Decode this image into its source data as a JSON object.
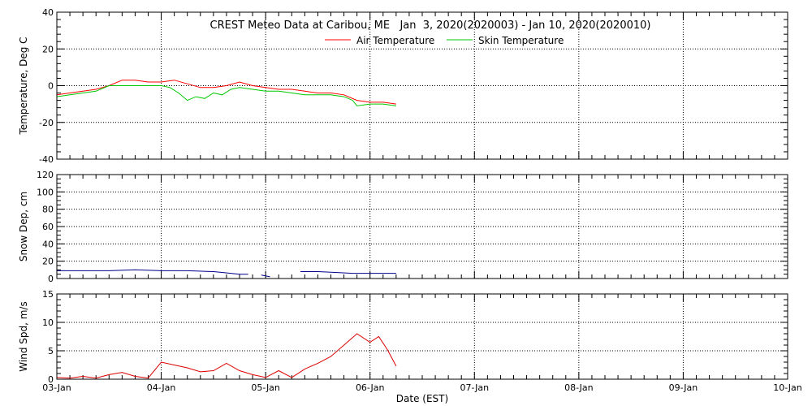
{
  "chart_data": [
    {
      "type": "line",
      "title": "CREST Meteo Data at Caribou, ME   Jan  3, 2020(2020003) - Jan 10, 2020(2020010)",
      "xlabel": "",
      "ylabel": "Temperature, Deg C",
      "xlim": [
        "2020-01-03",
        "2020-01-10"
      ],
      "ylim": [
        -40,
        40
      ],
      "yticks": [
        -40,
        -20,
        0,
        20,
        40
      ],
      "grid": true,
      "legend_position": "top-center",
      "series": [
        {
          "name": "Air Temperature",
          "color": "#ff0000",
          "x": [
            "2020-01-03 00:00",
            "2020-01-03 03:00",
            "2020-01-03 06:00",
            "2020-01-03 09:00",
            "2020-01-03 12:00",
            "2020-01-03 15:00",
            "2020-01-03 18:00",
            "2020-01-03 21:00",
            "2020-01-04 00:00",
            "2020-01-04 03:00",
            "2020-01-04 06:00",
            "2020-01-04 09:00",
            "2020-01-04 12:00",
            "2020-01-04 15:00",
            "2020-01-04 18:00",
            "2020-01-04 21:00",
            "2020-01-05 00:00",
            "2020-01-05 03:00",
            "2020-01-05 06:00",
            "2020-01-05 09:00",
            "2020-01-05 12:00",
            "2020-01-05 15:00",
            "2020-01-05 18:00",
            "2020-01-05 21:00",
            "2020-01-06 00:00",
            "2020-01-06 03:00",
            "2020-01-06 06:00"
          ],
          "y": [
            -5,
            -4,
            -3,
            -2,
            0,
            3,
            3,
            2,
            2,
            3,
            1,
            -1,
            -1,
            0,
            2,
            0,
            -1,
            -2,
            -2,
            -3,
            -4,
            -4,
            -5,
            -8,
            -9,
            -9,
            -10
          ]
        },
        {
          "name": "Skin Temperature",
          "color": "#00c800",
          "x": [
            "2020-01-03 00:00",
            "2020-01-03 03:00",
            "2020-01-03 06:00",
            "2020-01-03 09:00",
            "2020-01-03 12:00",
            "2020-01-03 15:00",
            "2020-01-03 18:00",
            "2020-01-03 21:00",
            "2020-01-04 00:00",
            "2020-01-04 02:00",
            "2020-01-04 04:00",
            "2020-01-04 06:00",
            "2020-01-04 08:00",
            "2020-01-04 10:00",
            "2020-01-04 12:00",
            "2020-01-04 14:00",
            "2020-01-04 16:00",
            "2020-01-04 18:00",
            "2020-01-04 21:00",
            "2020-01-05 00:00",
            "2020-01-05 03:00",
            "2020-01-05 06:00",
            "2020-01-05 09:00",
            "2020-01-05 12:00",
            "2020-01-05 15:00",
            "2020-01-05 18:00",
            "2020-01-05 20:00",
            "2020-01-05 21:00",
            "2020-01-06 00:00",
            "2020-01-06 03:00",
            "2020-01-06 06:00"
          ],
          "y": [
            -6,
            -5,
            -4,
            -3,
            0,
            0,
            0,
            0,
            0,
            -1,
            -4,
            -8,
            -6,
            -7,
            -4,
            -5,
            -2,
            -1,
            -2,
            -3,
            -3,
            -4,
            -5,
            -5,
            -5,
            -6,
            -8,
            -11,
            -10,
            -10,
            -11
          ]
        }
      ]
    },
    {
      "type": "line",
      "title": "",
      "xlabel": "",
      "ylabel": "Snow Dep, cm",
      "xlim": [
        "2020-01-03",
        "2020-01-10"
      ],
      "ylim": [
        0,
        120
      ],
      "yticks": [
        0,
        20,
        40,
        60,
        80,
        100,
        120
      ],
      "grid": true,
      "series": [
        {
          "name": "",
          "color": "#00008b",
          "x": [
            "2020-01-03 00:00",
            "2020-01-03 06:00",
            "2020-01-03 12:00",
            "2020-01-03 18:00",
            "2020-01-04 00:00",
            "2020-01-04 06:00",
            "2020-01-04 12:00",
            "2020-01-04 14:00",
            "2020-01-04 16:00",
            "2020-01-04 18:00",
            "2020-01-04 20:00",
            "null",
            "2020-01-04 23:00",
            "2020-01-05 00:00",
            "2020-01-05 01:00",
            "null",
            "2020-01-05 08:00",
            "2020-01-05 12:00",
            "2020-01-05 16:00",
            "2020-01-05 20:00",
            "2020-01-06 00:00",
            "2020-01-06 06:00"
          ],
          "y": [
            9,
            9,
            9,
            10,
            9,
            9,
            8,
            7,
            6,
            5,
            5,
            null,
            4,
            3,
            2,
            null,
            8,
            8,
            7,
            6,
            6,
            6
          ]
        }
      ]
    },
    {
      "type": "line",
      "title": "",
      "xlabel": "Date (EST)",
      "ylabel": "Wind Spd, m/s",
      "xlim": [
        "2020-01-03",
        "2020-01-10"
      ],
      "ylim": [
        0,
        15
      ],
      "yticks": [
        0,
        5,
        10,
        15
      ],
      "xticks": [
        "03-Jan",
        "04-Jan",
        "05-Jan",
        "06-Jan",
        "07-Jan",
        "08-Jan",
        "09-Jan",
        "10-Jan"
      ],
      "grid": true,
      "series": [
        {
          "name": "",
          "color": "#dc0000",
          "x": [
            "2020-01-03 00:00",
            "2020-01-03 03:00",
            "2020-01-03 06:00",
            "2020-01-03 09:00",
            "2020-01-03 12:00",
            "2020-01-03 15:00",
            "2020-01-03 18:00",
            "2020-01-03 21:00",
            "2020-01-04 00:00",
            "2020-01-04 03:00",
            "2020-01-04 06:00",
            "2020-01-04 09:00",
            "2020-01-04 12:00",
            "2020-01-04 15:00",
            "2020-01-04 18:00",
            "2020-01-04 21:00",
            "2020-01-05 00:00",
            "2020-01-05 03:00",
            "2020-01-05 06:00",
            "2020-01-05 09:00",
            "2020-01-05 12:00",
            "2020-01-05 15:00",
            "2020-01-05 18:00",
            "2020-01-05 21:00",
            "2020-01-06 00:00",
            "2020-01-06 02:00",
            "2020-01-06 04:00",
            "2020-01-06 06:00"
          ],
          "y": [
            0.3,
            0.2,
            0.5,
            0.2,
            0.8,
            1.2,
            0.5,
            0.2,
            3,
            2.5,
            2,
            1.3,
            1.5,
            2.8,
            1.5,
            0.8,
            0.3,
            1.5,
            0.3,
            1.8,
            2.8,
            4,
            6,
            8,
            6.5,
            7.5,
            5.2,
            2.3
          ]
        }
      ]
    }
  ]
}
